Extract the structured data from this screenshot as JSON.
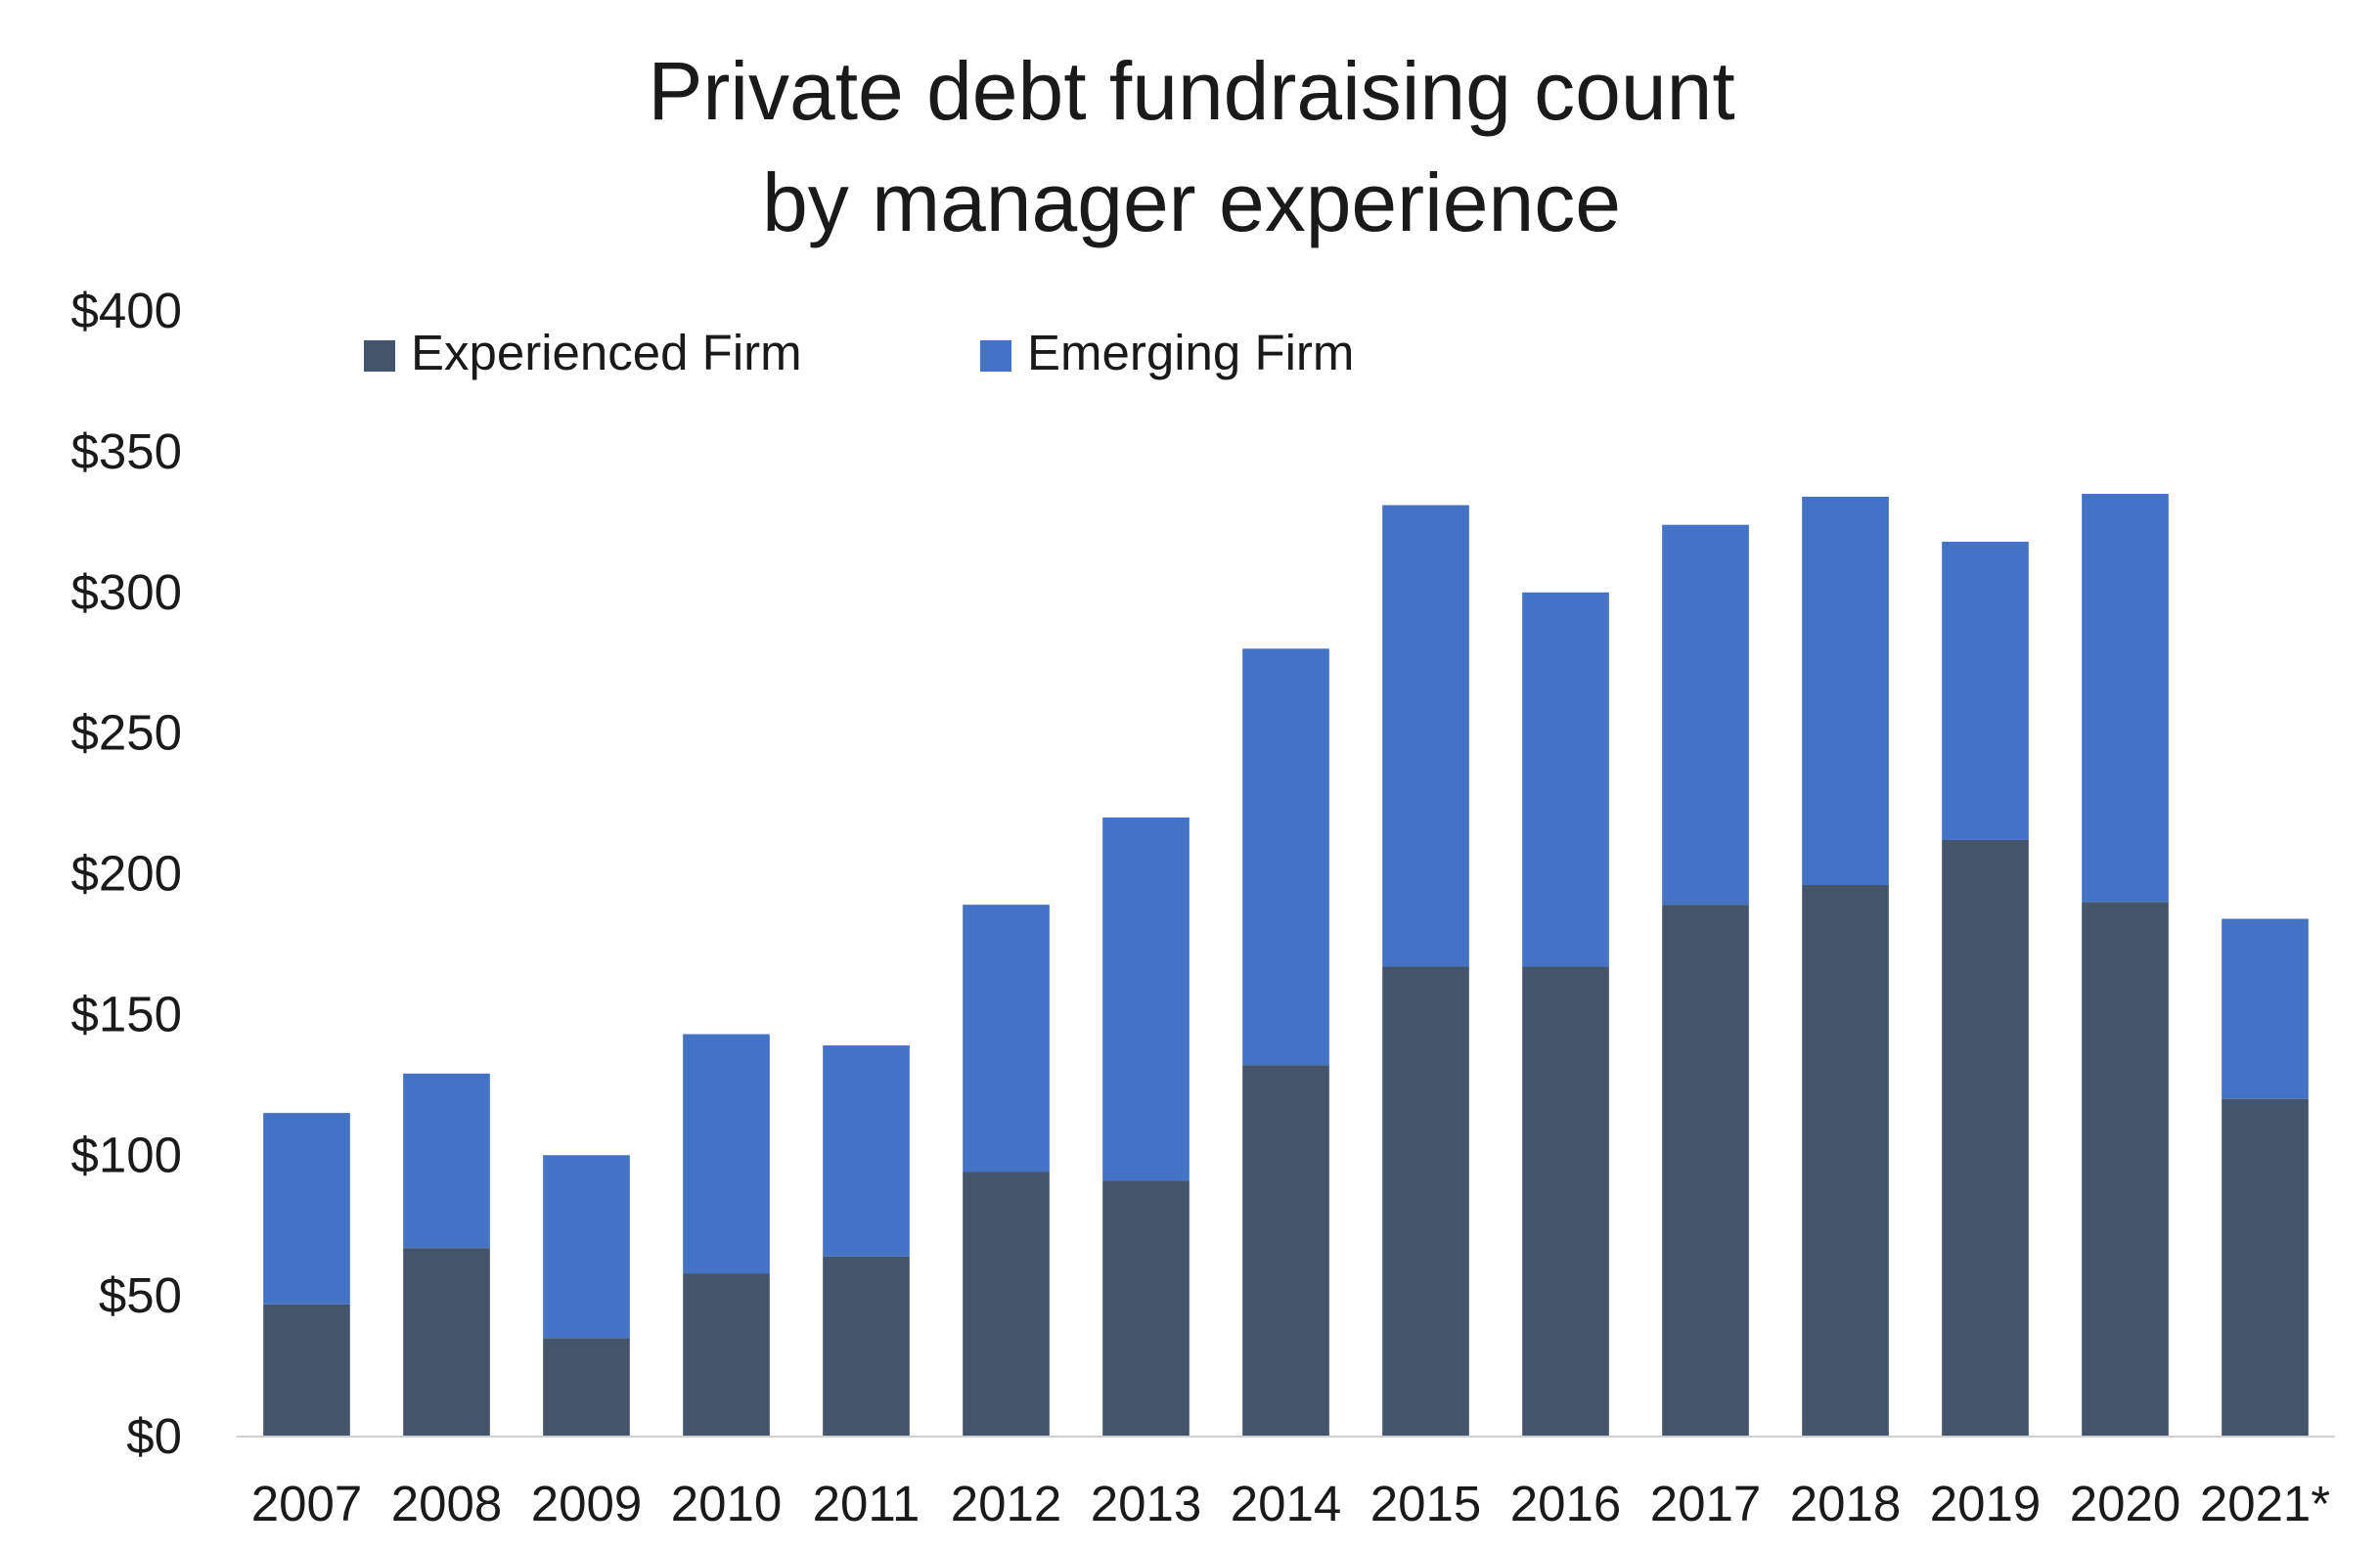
{
  "chart_data": {
    "type": "bar",
    "stacked": true,
    "title": [
      "Private debt fundraising count",
      "by manager experience"
    ],
    "categories": [
      "2007",
      "2008",
      "2009",
      "2010",
      "2011",
      "2012",
      "2013",
      "2014",
      "2015",
      "2016",
      "2017",
      "2018",
      "2019",
      "2020",
      "2021*"
    ],
    "series": [
      {
        "name": "Experienced Firm",
        "color": "#44546a",
        "values": [
          47,
          67,
          35,
          58,
          64,
          94,
          91,
          132,
          167,
          167,
          189,
          196,
          212,
          190,
          120
        ]
      },
      {
        "name": "Emerging Firm",
        "color": "#4472c4",
        "values": [
          68,
          62,
          65,
          85,
          75,
          95,
          129,
          148,
          164,
          133,
          135,
          138,
          106,
          145,
          64
        ]
      }
    ],
    "ylim": [
      0,
      400
    ],
    "yticks": [
      0,
      50,
      100,
      150,
      200,
      250,
      300,
      350,
      400
    ],
    "ytick_labels": [
      "$0",
      "$50",
      "$100",
      "$150",
      "$200",
      "$250",
      "$300",
      "$350",
      "$400"
    ],
    "xlabel": "",
    "ylabel": "",
    "grid": false,
    "legend": "top-left"
  }
}
